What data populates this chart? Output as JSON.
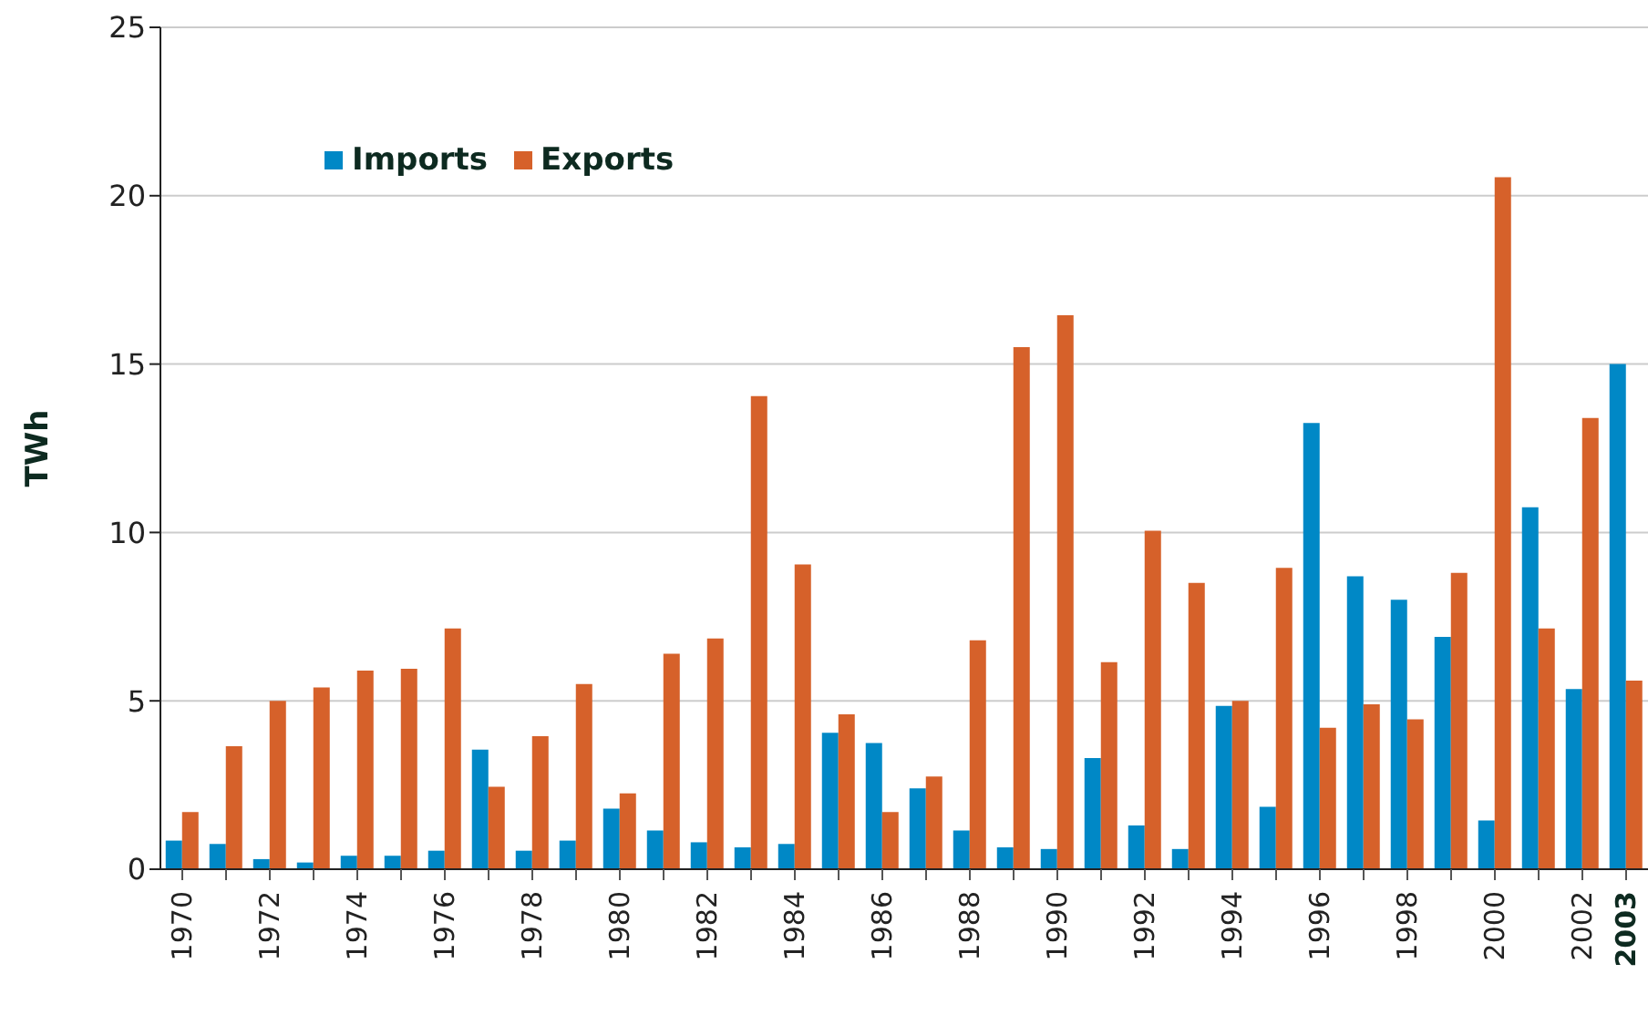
{
  "chart_data": {
    "type": "bar",
    "ylabel": "TWh",
    "categories": [
      "1970",
      null,
      "1972",
      null,
      "1974",
      null,
      "1976",
      null,
      "1978",
      null,
      "1980",
      null,
      "1982",
      null,
      "1984",
      null,
      "1986",
      null,
      "1988",
      null,
      "1990",
      null,
      "1992",
      null,
      "1994",
      null,
      "1996",
      null,
      "1998",
      null,
      "2000",
      null,
      "2002",
      "2003"
    ],
    "series": [
      {
        "name": "Imports",
        "color": "#0088c6",
        "values": [
          0.85,
          0.75,
          0.3,
          0.2,
          0.4,
          0.4,
          0.55,
          3.55,
          0.55,
          0.85,
          1.8,
          1.15,
          0.8,
          0.65,
          0.75,
          4.05,
          3.75,
          2.4,
          1.15,
          0.65,
          0.6,
          3.3,
          1.3,
          0.6,
          4.85,
          1.85,
          13.25,
          8.7,
          8.0,
          6.9,
          1.45,
          10.75,
          5.35,
          15.0
        ]
      },
      {
        "name": "Exports",
        "color": "#d6612a",
        "values": [
          1.7,
          3.65,
          5.0,
          5.4,
          5.9,
          5.95,
          7.15,
          2.45,
          3.95,
          5.5,
          2.25,
          6.4,
          6.85,
          14.05,
          9.05,
          4.6,
          1.7,
          2.75,
          6.8,
          15.5,
          16.45,
          6.15,
          10.05,
          8.5,
          5.0,
          8.95,
          4.2,
          4.9,
          4.45,
          8.8,
          20.55,
          7.15,
          13.4,
          5.6
        ]
      }
    ],
    "ylim": [
      0,
      25
    ],
    "yticks": [
      0,
      5,
      10,
      15,
      20,
      25
    ],
    "grid": "y",
    "legend": "top left"
  }
}
